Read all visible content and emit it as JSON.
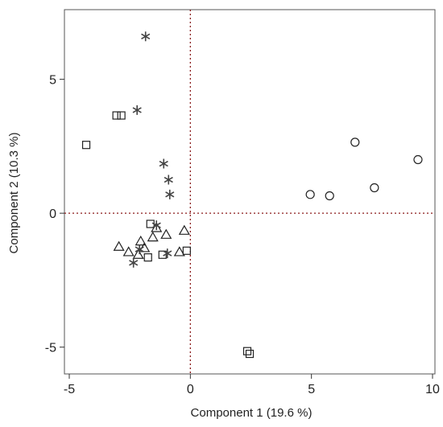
{
  "chart_data": {
    "type": "scatter",
    "title": "",
    "xlabel": "Component 1  (19.6 %)",
    "ylabel": "Component 2  (10.3 %)",
    "xlim": [
      -5.2,
      10.1
    ],
    "ylim": [
      -6.0,
      7.6
    ],
    "x_ticks": [
      -5,
      0,
      5,
      10
    ],
    "x_tick_labels": [
      "-5",
      "0",
      "5",
      "10"
    ],
    "y_ticks": [
      -5,
      0,
      5
    ],
    "y_tick_labels": [
      "-5",
      "0",
      "5"
    ],
    "grid": false,
    "reference_lines": {
      "x": 0,
      "y": 0,
      "color": "#8b1a1a",
      "style": "dotted"
    },
    "series": [
      {
        "marker": "square",
        "points": [
          {
            "x": -4.3,
            "y": 2.55
          },
          {
            "x": -3.05,
            "y": 3.65
          },
          {
            "x": -2.85,
            "y": 3.65
          },
          {
            "x": -1.65,
            "y": -0.4
          },
          {
            "x": -1.75,
            "y": -1.65
          },
          {
            "x": -1.15,
            "y": -1.55
          },
          {
            "x": -0.15,
            "y": -1.4
          },
          {
            "x": 2.35,
            "y": -5.15
          },
          {
            "x": 2.45,
            "y": -5.25
          }
        ]
      },
      {
        "marker": "circle",
        "points": [
          {
            "x": 4.95,
            "y": 0.7
          },
          {
            "x": 5.75,
            "y": 0.65
          },
          {
            "x": 6.8,
            "y": 2.65
          },
          {
            "x": 7.6,
            "y": 0.95
          },
          {
            "x": 9.4,
            "y": 2.0
          }
        ]
      },
      {
        "marker": "triangle",
        "points": [
          {
            "x": -2.95,
            "y": -1.25
          },
          {
            "x": -2.55,
            "y": -1.45
          },
          {
            "x": -2.05,
            "y": -1.05
          },
          {
            "x": -2.15,
            "y": -1.55
          },
          {
            "x": -1.55,
            "y": -0.9
          },
          {
            "x": -1.4,
            "y": -0.55
          },
          {
            "x": -1.0,
            "y": -0.8
          },
          {
            "x": -0.45,
            "y": -1.45
          },
          {
            "x": -0.25,
            "y": -0.65
          },
          {
            "x": -1.9,
            "y": -1.3
          }
        ]
      },
      {
        "marker": "asterisk",
        "points": [
          {
            "x": -1.85,
            "y": 6.6
          },
          {
            "x": -2.2,
            "y": 3.85
          },
          {
            "x": -1.1,
            "y": 1.85
          },
          {
            "x": -0.9,
            "y": 1.25
          },
          {
            "x": -0.85,
            "y": 0.7
          },
          {
            "x": -1.4,
            "y": -0.45
          },
          {
            "x": -2.1,
            "y": -1.35
          },
          {
            "x": -2.35,
            "y": -1.85
          },
          {
            "x": -0.95,
            "y": -1.5
          }
        ]
      }
    ]
  }
}
